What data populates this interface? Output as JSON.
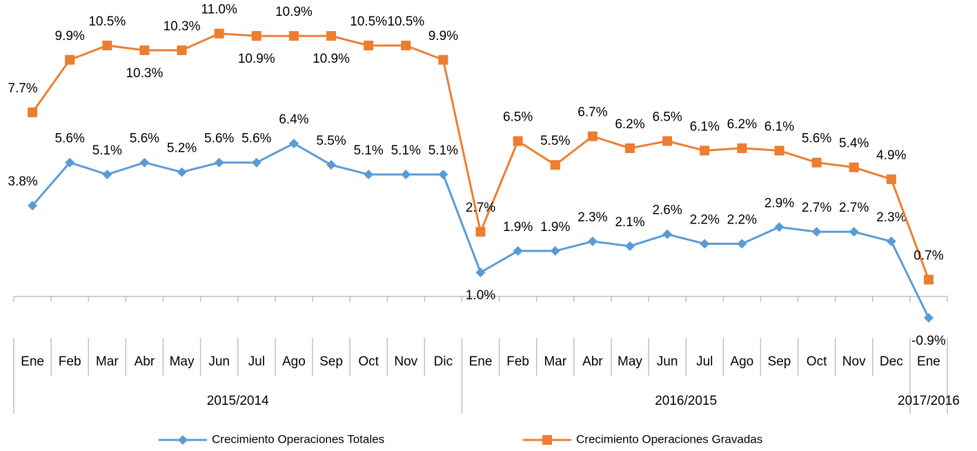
{
  "chart_data": {
    "type": "line",
    "groups": [
      {
        "name": "2015/2014",
        "categories": [
          "Ene",
          "Feb",
          "Mar",
          "Abr",
          "May",
          "Jun",
          "Jul",
          "Ago",
          "Sep",
          "Oct",
          "Nov",
          "Dic"
        ]
      },
      {
        "name": "2016/2015",
        "categories": [
          "Ene",
          "Feb",
          "Mar",
          "Abr",
          "May",
          "Jun",
          "Jul",
          "Ago",
          "Sep",
          "Oct",
          "Nov",
          "Dec"
        ]
      },
      {
        "name": "2017/2016",
        "categories": [
          "Ene"
        ]
      }
    ],
    "ylim": [
      -2,
      12
    ],
    "series": [
      {
        "name": "Crecimiento Operaciones Totales",
        "color": "#5b9bd5",
        "marker": "diamond",
        "values": [
          3.8,
          5.6,
          5.1,
          5.6,
          5.2,
          5.6,
          5.6,
          6.4,
          5.5,
          5.1,
          5.1,
          5.1,
          1.0,
          1.9,
          1.9,
          2.3,
          2.1,
          2.6,
          2.2,
          2.2,
          2.9,
          2.7,
          2.7,
          2.3,
          -0.9
        ],
        "value_labels": [
          "3.8%",
          "5.6%",
          "5.1%",
          "5.6%",
          "5.2%",
          "5.6%",
          "5.6%",
          "6.4%",
          "5.5%",
          "5.1%",
          "5.1%",
          "5.1%",
          "1.0%",
          "1.9%",
          "1.9%",
          "2.3%",
          "2.1%",
          "2.6%",
          "2.2%",
          "2.2%",
          "2.9%",
          "2.7%",
          "2.7%",
          "2.3%",
          "-0.9%"
        ]
      },
      {
        "name": "Crecimiento Operaciones Gravadas",
        "color": "#ed7d31",
        "marker": "square",
        "values": [
          7.7,
          9.9,
          10.5,
          10.3,
          10.3,
          11.0,
          10.9,
          10.9,
          10.9,
          10.5,
          10.5,
          9.9,
          2.7,
          6.5,
          5.5,
          6.7,
          6.2,
          6.5,
          6.1,
          6.2,
          6.1,
          5.6,
          5.4,
          4.9,
          0.7
        ],
        "value_labels": [
          "7.7%",
          "9.9%",
          "10.5%",
          "10.3%",
          "10.3%",
          "11.0%",
          "10.9%",
          "10.9%",
          "10.9%",
          "10.5%",
          "10.5%",
          "9.9%",
          "2.7%",
          "6.5%",
          "5.5%",
          "6.7%",
          "6.2%",
          "6.5%",
          "6.1%",
          "6.2%",
          "6.1%",
          "5.6%",
          "5.4%",
          "4.9%",
          "0.7%"
        ]
      }
    ]
  }
}
